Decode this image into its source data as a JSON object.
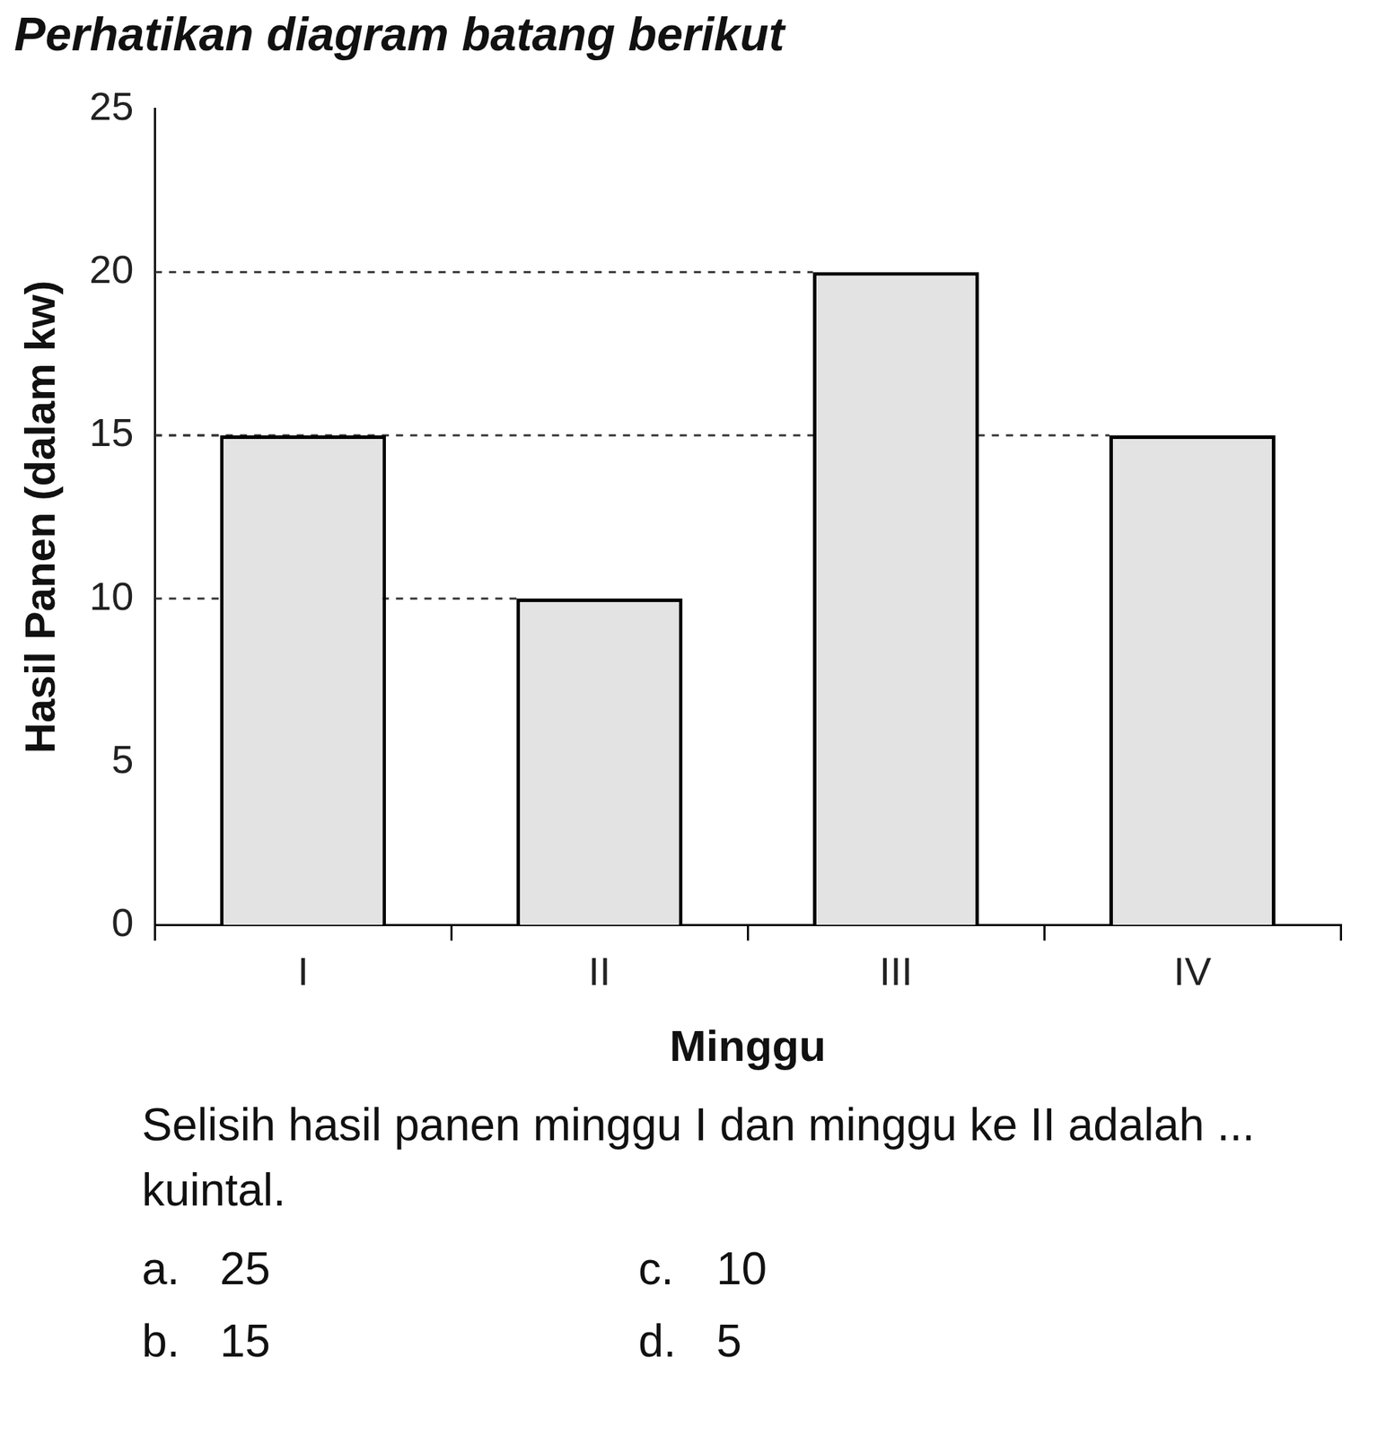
{
  "chart_data": {
    "type": "bar",
    "title": "Perhatikan diagram batang berikut",
    "x_label": "Minggu",
    "y_label": "Hasil Panen (dalam kw)",
    "categories": [
      "I",
      "II",
      "III",
      "IV"
    ],
    "values": [
      15,
      10,
      20,
      15
    ],
    "color": "#e3e3e3",
    "ylim": [
      0,
      25
    ],
    "yticks": [
      0,
      5,
      10,
      15,
      20,
      25
    ],
    "grid": false
  },
  "question": "Selisih hasil panen minggu I dan minggu ke II adalah ... kuintal.",
  "options": [
    {
      "key": "a.",
      "text": "25"
    },
    {
      "key": "c.",
      "text": "10"
    },
    {
      "key": "b.",
      "text": "15"
    },
    {
      "key": "d.",
      "text": "5"
    }
  ]
}
